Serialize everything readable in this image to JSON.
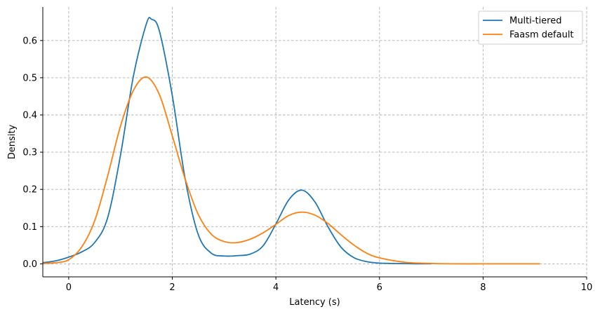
{
  "chart_data": {
    "type": "line",
    "title": "",
    "xlabel": "Latency (s)",
    "ylabel": "Density",
    "xlim": [
      -0.5,
      10
    ],
    "ylim": [
      -0.035,
      0.69
    ],
    "xticks": [
      0,
      2,
      4,
      6,
      8,
      10
    ],
    "yticks": [
      0.0,
      0.1,
      0.2,
      0.3,
      0.4,
      0.5,
      0.6
    ],
    "xtick_labels": [
      "0",
      "2",
      "4",
      "6",
      "8",
      "10"
    ],
    "ytick_labels": [
      "0.0",
      "0.1",
      "0.2",
      "0.3",
      "0.4",
      "0.5",
      "0.6"
    ],
    "grid": true,
    "legend_position": "top-right",
    "series": [
      {
        "name": "Multi-tiered",
        "color": "#1f77b4",
        "x": [
          -0.5,
          -0.25,
          0,
          0.25,
          0.5,
          0.75,
          1.0,
          1.25,
          1.5,
          1.6,
          1.75,
          2.0,
          2.25,
          2.5,
          2.75,
          3.0,
          3.25,
          3.5,
          3.75,
          4.0,
          4.25,
          4.5,
          4.75,
          5.0,
          5.25,
          5.5,
          5.75,
          6.0,
          6.5,
          7.0
        ],
        "y": [
          0.003,
          0.008,
          0.018,
          0.032,
          0.057,
          0.123,
          0.292,
          0.505,
          0.645,
          0.657,
          0.626,
          0.452,
          0.227,
          0.079,
          0.029,
          0.021,
          0.022,
          0.026,
          0.048,
          0.107,
          0.172,
          0.198,
          0.167,
          0.101,
          0.046,
          0.017,
          0.006,
          0.002,
          0.0005,
          0.0
        ]
      },
      {
        "name": "Faasm default",
        "color": "#ff7f0e",
        "x": [
          -0.5,
          -0.25,
          0,
          0.25,
          0.5,
          0.75,
          1.0,
          1.25,
          1.5,
          1.75,
          2.0,
          2.25,
          2.5,
          2.75,
          3.0,
          3.25,
          3.5,
          3.75,
          4.0,
          4.25,
          4.5,
          4.75,
          5.0,
          5.25,
          5.5,
          5.75,
          6.0,
          6.5,
          7.0,
          7.5,
          8.0,
          8.5,
          9.0,
          9.1
        ],
        "y": [
          0.001,
          0.003,
          0.011,
          0.045,
          0.115,
          0.235,
          0.37,
          0.466,
          0.502,
          0.455,
          0.344,
          0.227,
          0.133,
          0.08,
          0.06,
          0.057,
          0.066,
          0.083,
          0.106,
          0.13,
          0.139,
          0.131,
          0.109,
          0.079,
          0.051,
          0.029,
          0.016,
          0.004,
          0.001,
          0.0,
          0.0,
          0.0,
          0.0,
          0.0
        ]
      }
    ]
  }
}
